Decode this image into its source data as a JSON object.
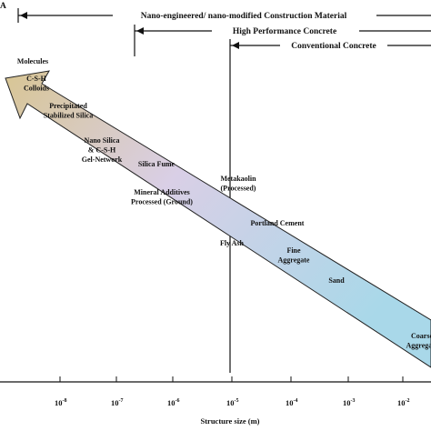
{
  "panel_label": "A",
  "ranges": [
    {
      "label": "Nano-engineered/ nano-modified Construction Material"
    },
    {
      "label": "High Performance Concrete"
    },
    {
      "label": "Conventional Concrete"
    }
  ],
  "materials": [
    {
      "lines": [
        "Molecules"
      ]
    },
    {
      "lines": [
        "C-S-H",
        "Colloids"
      ]
    },
    {
      "lines": [
        "Precipitated",
        "Stabilized Silica"
      ]
    },
    {
      "lines": [
        "Nano Silica",
        "& C-S-H",
        "Gel-Network"
      ]
    },
    {
      "lines": [
        "Silica Fume"
      ]
    },
    {
      "lines": [
        "Metakaolin",
        "(Processed)"
      ]
    },
    {
      "lines": [
        "Mineral Additives",
        "Processed (Ground)"
      ]
    },
    {
      "lines": [
        "Portland Cement"
      ]
    },
    {
      "lines": [
        "Fly Ash"
      ]
    },
    {
      "lines": [
        "Fine",
        "Aggregate"
      ]
    },
    {
      "lines": [
        "Sand"
      ]
    },
    {
      "lines": [
        "Coarse",
        "Aggregate"
      ]
    }
  ],
  "axis": {
    "label": "Structure size (m)",
    "ticks": [
      {
        "base": "10",
        "exp": "-8"
      },
      {
        "base": "10",
        "exp": "-7"
      },
      {
        "base": "10",
        "exp": "-6"
      },
      {
        "base": "10",
        "exp": "-5"
      },
      {
        "base": "10",
        "exp": "-4"
      },
      {
        "base": "10",
        "exp": "-3"
      },
      {
        "base": "10",
        "exp": "-2"
      }
    ]
  }
}
